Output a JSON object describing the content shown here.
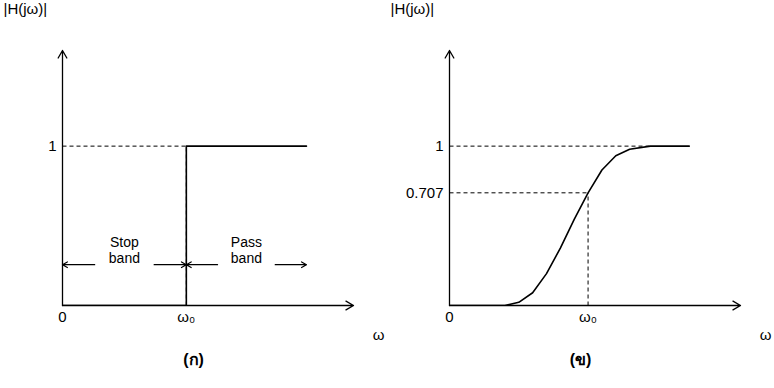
{
  "chart_data": [
    {
      "type": "line",
      "caption": "(ก)",
      "xlabel": "ω",
      "ylabel": "|H(jω)|",
      "color": "#000000",
      "x": [
        0,
        1,
        1,
        1.97
      ],
      "values": [
        0,
        0,
        1,
        1
      ],
      "xlim": [
        0,
        2.35
      ],
      "ylim": [
        0,
        1.6
      ],
      "xticks": [
        0,
        {
          "value": 1,
          "label": "ω₀"
        }
      ],
      "yticks": [
        1
      ],
      "bands": [
        {
          "label": "Stop band",
          "from": 0,
          "to": 1
        },
        {
          "label": "Pass band",
          "from": 1,
          "to": 1.97
        }
      ]
    },
    {
      "type": "line",
      "caption": "(ข)",
      "xlabel": "ω",
      "ylabel": "|H(jω)|",
      "color": "#000000",
      "x": [
        0,
        0.4,
        0.5,
        0.6,
        0.7,
        0.8,
        0.9,
        1,
        1.1,
        1.2,
        1.3,
        1.45,
        1.73
      ],
      "values": [
        0,
        0,
        0.02,
        0.08,
        0.2,
        0.36,
        0.54,
        0.707,
        0.85,
        0.94,
        0.98,
        1,
        1
      ],
      "xlim": [
        0,
        2.1
      ],
      "ylim": [
        0,
        1.6
      ],
      "xticks": [
        0,
        {
          "value": 1,
          "label": "ω₀"
        }
      ],
      "yticks": [
        0.707,
        1
      ]
    }
  ]
}
